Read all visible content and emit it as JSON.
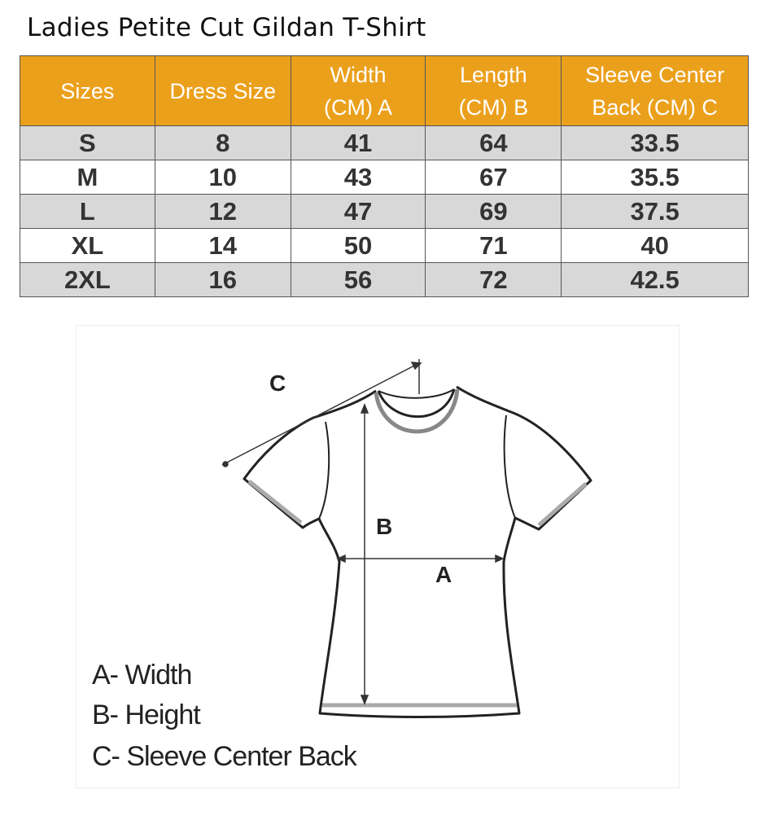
{
  "title": "Ladies Petite Cut Gildan T-Shirt",
  "table": {
    "headers": [
      "Sizes",
      "Dress Size",
      "Width (CM) A",
      "Length (CM) B",
      "Sleeve Center Back (CM) C"
    ],
    "header_lines": [
      [
        "Sizes"
      ],
      [
        "Dress Size"
      ],
      [
        "Width",
        "(CM) A"
      ],
      [
        "Length",
        "(CM) B"
      ],
      [
        "Sleeve Center",
        "Back (CM) C"
      ]
    ],
    "rows": [
      [
        "S",
        "8",
        "41",
        "64",
        "33.5"
      ],
      [
        "M",
        "10",
        "43",
        "67",
        "35.5"
      ],
      [
        "L",
        "12",
        "47",
        "69",
        "37.5"
      ],
      [
        "XL",
        "14",
        "50",
        "71",
        "40"
      ],
      [
        "2XL",
        "16",
        "56",
        "72",
        "42.5"
      ]
    ]
  },
  "diagram": {
    "labels": {
      "a": "A",
      "b": "B",
      "c": "C"
    },
    "legend": [
      "A- Width",
      "B- Height",
      "C- Sleeve Center Back"
    ]
  },
  "colors": {
    "header": "#EBA01C",
    "row_alt": "#D8D8D8"
  }
}
